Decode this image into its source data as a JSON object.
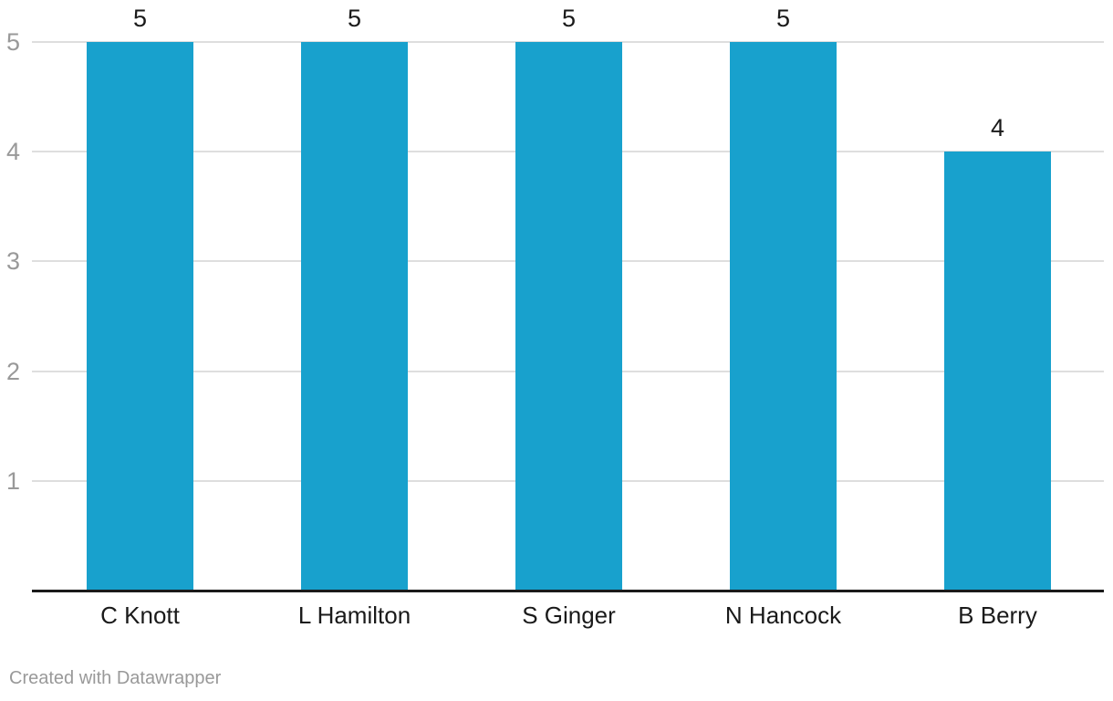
{
  "chart_data": {
    "type": "bar",
    "categories": [
      "C Knott",
      "L Hamilton",
      "S Ginger",
      "N Hancock",
      "B Berry"
    ],
    "values": [
      5,
      5,
      5,
      5,
      4
    ],
    "value_labels": [
      "5",
      "5",
      "5",
      "5",
      "4"
    ],
    "title": "",
    "xlabel": "",
    "ylabel": "",
    "ylim": [
      0,
      5
    ],
    "yticks": [
      1,
      2,
      3,
      4,
      5
    ],
    "grid": true,
    "legend": "none",
    "bar_color": "#18a1cd"
  },
  "colors": {
    "bar": "#18a1cd",
    "gridline": "#dedede",
    "axis_line": "#1a1a1a",
    "tick_text": "#999999",
    "label_text": "#1a1a1a",
    "credit_text": "#999999"
  },
  "footer": {
    "credit": "Created with Datawrapper"
  }
}
